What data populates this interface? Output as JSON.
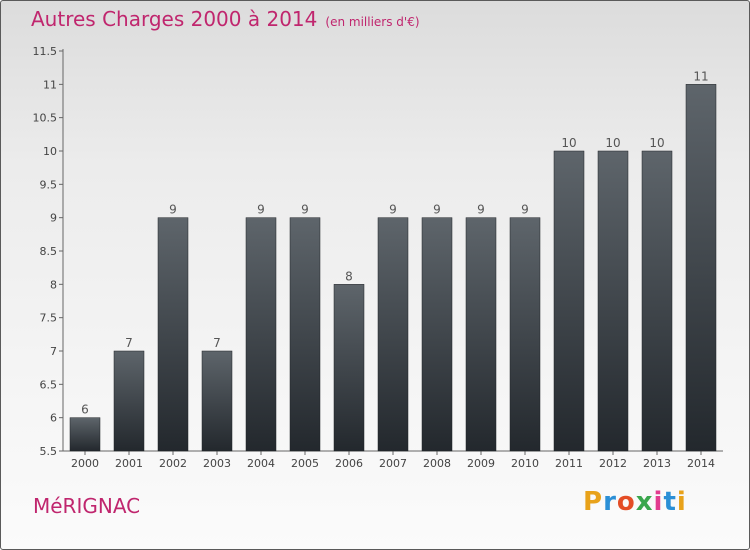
{
  "title": "Autres Charges 2000 à 2014",
  "subtitle": "(en milliers d'€)",
  "location": "MéRIGNAC",
  "logo": "Proxiti",
  "colors": {
    "title": "#c0266e",
    "bar_top": "#5e656b",
    "bar_bottom": "#23282d"
  },
  "chart_data": {
    "type": "bar",
    "categories": [
      "2000",
      "2001",
      "2002",
      "2003",
      "2004",
      "2005",
      "2006",
      "2007",
      "2008",
      "2009",
      "2010",
      "2011",
      "2012",
      "2013",
      "2014"
    ],
    "values": [
      6,
      7,
      9,
      7,
      9,
      9,
      8,
      9,
      9,
      9,
      9,
      10,
      10,
      10,
      11
    ],
    "ylim": [
      5.5,
      11.5
    ],
    "yticks": [
      5.5,
      6,
      6.5,
      7,
      7.5,
      8,
      8.5,
      9,
      9.5,
      10,
      10.5,
      11,
      11.5
    ],
    "ytick_labels": [
      "5.5",
      "6",
      "6.5",
      "7",
      "7.5",
      "8",
      "8.5",
      "9",
      "9.5",
      "10",
      "10.5",
      "11",
      "11.5"
    ],
    "grid": false
  }
}
